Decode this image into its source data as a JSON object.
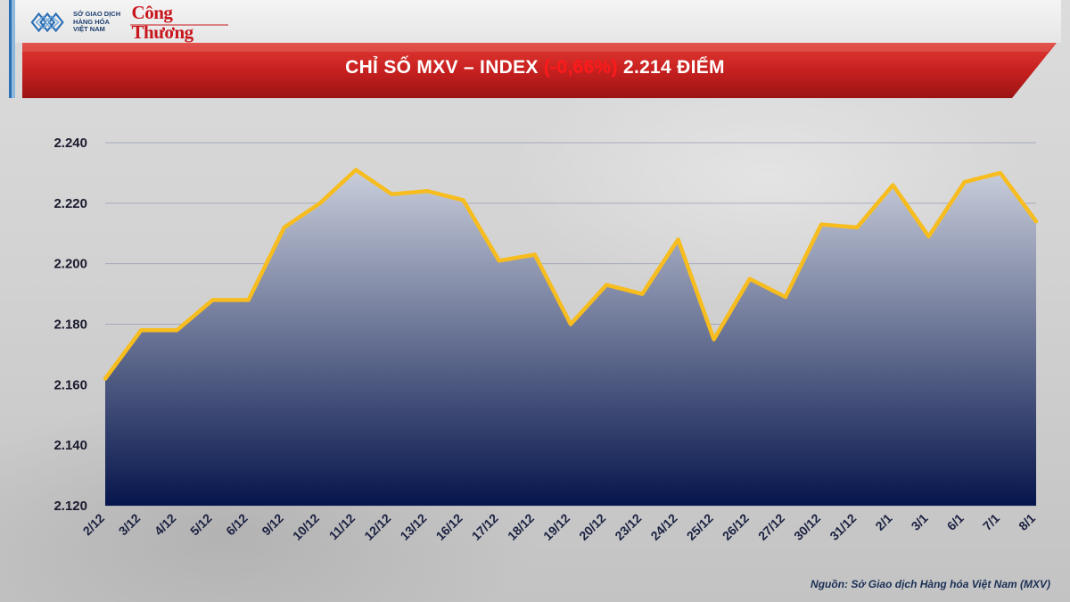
{
  "header": {
    "logo_org": "SỞ GIAO DỊCH\nHÀNG HÓA\nVIỆT NAM",
    "logo_brand": "Công Thương"
  },
  "title": {
    "prefix": "CHỈ SỐ MXV – INDEX",
    "change": "(-0,66%)",
    "value": "2.214 ĐIỂM"
  },
  "source": "Nguồn: Sở Giao dịch Hàng hóa Việt Nam (MXV)",
  "colors": {
    "line": "#f7bd1e",
    "area_top": "#c9cedb",
    "area_bottom": "#06154c",
    "banner": "#c82020",
    "grid": "#8088a8"
  },
  "chart_data": {
    "type": "area",
    "title": "CHỈ SỐ MXV – INDEX (-0,66%) 2.214 ĐIỂM",
    "categories": [
      "2/12",
      "3/12",
      "4/12",
      "5/12",
      "6/12",
      "9/12",
      "10/12",
      "11/12",
      "12/12",
      "13/12",
      "16/12",
      "17/12",
      "18/12",
      "19/12",
      "20/12",
      "23/12",
      "24/12",
      "25/12",
      "26/12",
      "27/12",
      "30/12",
      "31/12",
      "2/1",
      "3/1",
      "6/1",
      "7/1",
      "8/1"
    ],
    "values": [
      2162,
      2178,
      2178,
      2188,
      2188,
      2212,
      2220,
      2231,
      2223,
      2224,
      2221,
      2201,
      2203,
      2180,
      2193,
      2190,
      2208,
      2175,
      2195,
      2189,
      2213,
      2212,
      2226,
      2209,
      2227,
      2230,
      2214
    ],
    "ylim": [
      2120,
      2240
    ],
    "yticks": [
      "2.120",
      "2.140",
      "2.160",
      "2.180",
      "2.200",
      "2.220",
      "2.240"
    ],
    "ytick_values": [
      2120,
      2140,
      2160,
      2180,
      2200,
      2220,
      2240
    ],
    "grid": true,
    "xlabel": "",
    "ylabel": ""
  }
}
